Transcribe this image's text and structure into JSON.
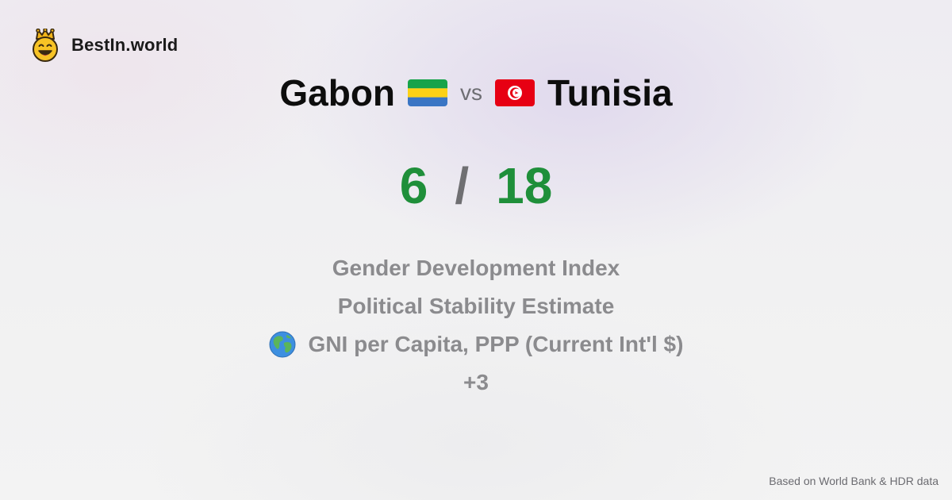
{
  "brand": {
    "name": "BestIn.world",
    "logo_icon": "smiling-crown-face-icon"
  },
  "comparison": {
    "left_country": "Gabon",
    "left_flag_icon": "gabon-flag-icon",
    "vs_label": "vs",
    "right_country": "Tunisia",
    "right_flag_icon": "tunisia-flag-icon"
  },
  "score": {
    "left": "6",
    "separator": "/",
    "right": "18",
    "color": "#1f8f3a"
  },
  "metrics": [
    {
      "label": "Gender Development Index"
    },
    {
      "label": "Political Stability Estimate"
    },
    {
      "label": "GNI per Capita, PPP (Current Int'l $)",
      "icon": "globe-icon"
    },
    {
      "label": "+3"
    }
  ],
  "footer": {
    "source": "Based on World Bank & HDR data"
  }
}
